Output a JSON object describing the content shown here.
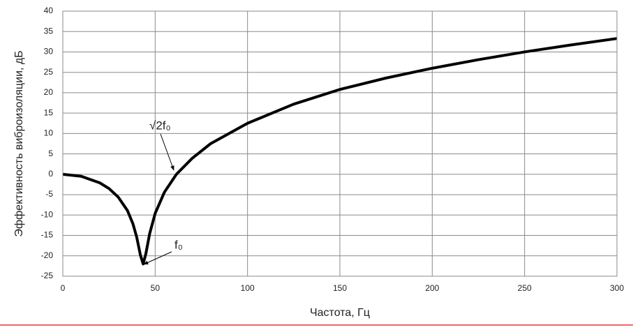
{
  "chart_data": {
    "type": "line",
    "x_label": "Частота, Гц",
    "y_label": "Эффективность виброизоляции, дБ",
    "x": [
      0,
      10,
      20,
      25,
      30,
      35,
      38,
      40,
      42,
      43.5,
      45,
      47,
      50,
      55,
      61.5,
      70,
      80,
      100,
      125,
      150,
      175,
      200,
      225,
      250,
      275,
      300
    ],
    "series": [
      {
        "name": "Эффективность виброизоляции",
        "color": "#000000",
        "values": [
          0,
          -0.5,
          -2.1,
          -3.5,
          -5.6,
          -8.9,
          -12.2,
          -15.4,
          -19.8,
          -22,
          -19.4,
          -14.6,
          -9.6,
          -4.4,
          0,
          3.9,
          7.5,
          12.5,
          17.2,
          20.8,
          23.6,
          26,
          28.1,
          30,
          31.7,
          33.3
        ]
      }
    ],
    "xlim": [
      0,
      300
    ],
    "xticks": [
      0,
      50,
      100,
      150,
      200,
      250,
      300
    ],
    "ylim": [
      -25,
      40
    ],
    "yticks": [
      -25,
      -20,
      -15,
      -10,
      -5,
      0,
      5,
      10,
      15,
      20,
      25,
      30,
      35,
      40
    ],
    "grid": true,
    "annotations": [
      "√2f₀",
      "f₀"
    ]
  }
}
